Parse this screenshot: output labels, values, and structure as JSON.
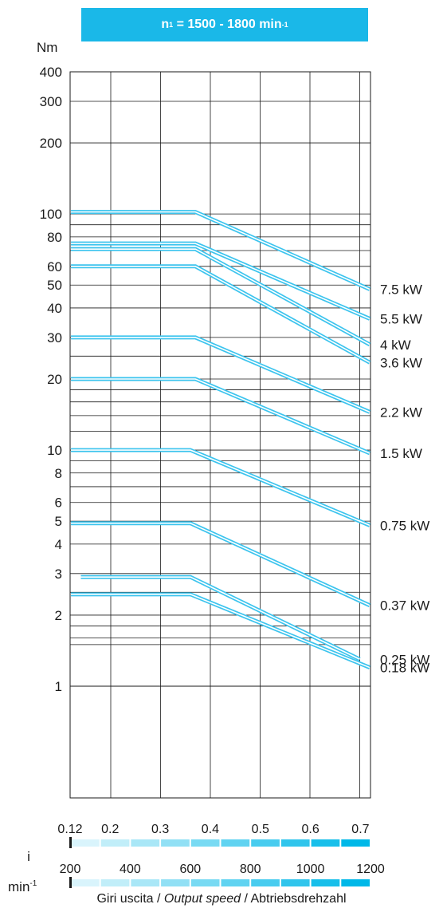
{
  "header": {
    "label": "n",
    "sub": "1",
    "range": "= 1500 - 1800 min",
    "sup": "-1",
    "color": "#1ab8e8"
  },
  "ylabel": "Nm",
  "footer": {
    "a": "Giri uscita /",
    "b": "Output speed",
    "c": "/ Abtriebsdrehzahl"
  },
  "chart_data": {
    "type": "line",
    "title": "",
    "ylabel": "Nm",
    "yscale": "log",
    "ylim": [
      1,
      400
    ],
    "yticks": [
      1,
      2,
      3,
      4,
      5,
      6,
      8,
      10,
      20,
      30,
      40,
      50,
      60,
      80,
      100,
      200,
      300,
      400
    ],
    "xlim": [
      0.12,
      0.72
    ],
    "xaxis_i": {
      "label": "i",
      "ticks": [
        "0.12",
        "0.2",
        "0.3",
        "0.4",
        "0.5",
        "0.6",
        "0.7"
      ],
      "values": [
        0.12,
        0.2,
        0.3,
        0.4,
        0.5,
        0.6,
        0.7
      ]
    },
    "xaxis_rpm": {
      "label": "min",
      "label_sup": "-1",
      "ticks": [
        "200",
        "400",
        "600",
        "800",
        "1000",
        "1200"
      ],
      "values": [
        200,
        400,
        600,
        800,
        1000,
        1200
      ]
    },
    "grid": true,
    "line_color": "#3cc4ee",
    "series": [
      {
        "name": "7.5 kW",
        "x": [
          0.12,
          0.37,
          0.72
        ],
        "y": [
          102,
          102,
          48
        ]
      },
      {
        "name": "5.5 kW",
        "x": [
          0.12,
          0.37,
          0.72
        ],
        "y": [
          75,
          75,
          36
        ]
      },
      {
        "name": "4 kW",
        "x": [
          0.12,
          0.37,
          0.72
        ],
        "y": [
          71,
          71,
          28
        ]
      },
      {
        "name": "3.6 kW",
        "x": [
          0.12,
          0.37,
          0.72
        ],
        "y": [
          60,
          60,
          23.5
        ]
      },
      {
        "name": "2.2 kW",
        "x": [
          0.12,
          0.37,
          0.72
        ],
        "y": [
          30,
          30,
          14.5
        ]
      },
      {
        "name": "1.5 kW",
        "x": [
          0.12,
          0.37,
          0.72
        ],
        "y": [
          20,
          20,
          9.7
        ]
      },
      {
        "name": "0.75 kW",
        "x": [
          0.12,
          0.36,
          0.72
        ],
        "y": [
          10,
          10,
          4.8
        ]
      },
      {
        "name": "0.37 kW",
        "x": [
          0.12,
          0.36,
          0.72
        ],
        "y": [
          4.9,
          4.9,
          2.2
        ]
      },
      {
        "name": "0.25 kW",
        "x": [
          0.14,
          0.36,
          0.7
        ],
        "y": [
          2.9,
          2.9,
          1.3
        ]
      },
      {
        "name": "0.18 kW",
        "x": [
          0.12,
          0.36,
          0.72
        ],
        "y": [
          2.45,
          2.45,
          1.2
        ]
      }
    ]
  }
}
